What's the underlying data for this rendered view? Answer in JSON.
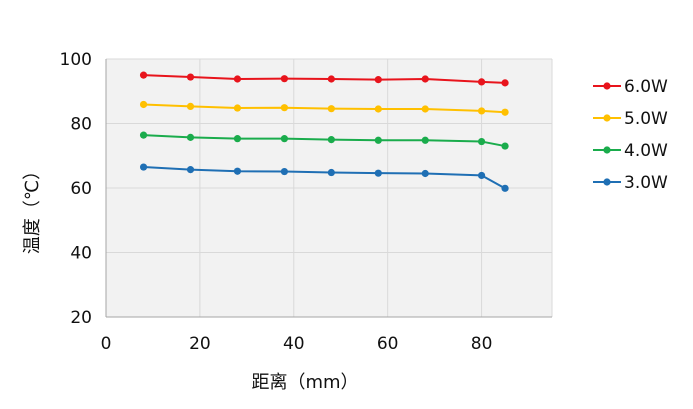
{
  "chart_data": {
    "type": "line",
    "xlabel": "距离（mm）",
    "ylabel": "温度（℃）",
    "xlim": [
      0,
      95
    ],
    "ylim": [
      20,
      100
    ],
    "x_ticks": [
      0,
      20,
      40,
      60,
      80
    ],
    "y_ticks": [
      20,
      40,
      60,
      80,
      100
    ],
    "grid": true,
    "plot_background": "#f2f2f2",
    "grid_color": "#d9d9d9",
    "legend_position": "right",
    "x": [
      8,
      18,
      28,
      38,
      48,
      58,
      68,
      80,
      85
    ],
    "series": [
      {
        "name": "6.0W",
        "color": "#e8141c",
        "values": [
          95.0,
          94.4,
          93.8,
          93.9,
          93.8,
          93.6,
          93.8,
          92.9,
          92.6
        ]
      },
      {
        "name": "5.0W",
        "color": "#ffc000",
        "values": [
          85.9,
          85.3,
          84.8,
          84.9,
          84.6,
          84.5,
          84.5,
          83.9,
          83.5
        ]
      },
      {
        "name": "4.0W",
        "color": "#1aac4c",
        "values": [
          76.4,
          75.7,
          75.3,
          75.3,
          75.0,
          74.8,
          74.8,
          74.4,
          73.0
        ]
      },
      {
        "name": "3.0W",
        "color": "#1f6fb4",
        "values": [
          66.5,
          65.7,
          65.2,
          65.1,
          64.8,
          64.6,
          64.5,
          63.9,
          59.9
        ]
      }
    ]
  }
}
